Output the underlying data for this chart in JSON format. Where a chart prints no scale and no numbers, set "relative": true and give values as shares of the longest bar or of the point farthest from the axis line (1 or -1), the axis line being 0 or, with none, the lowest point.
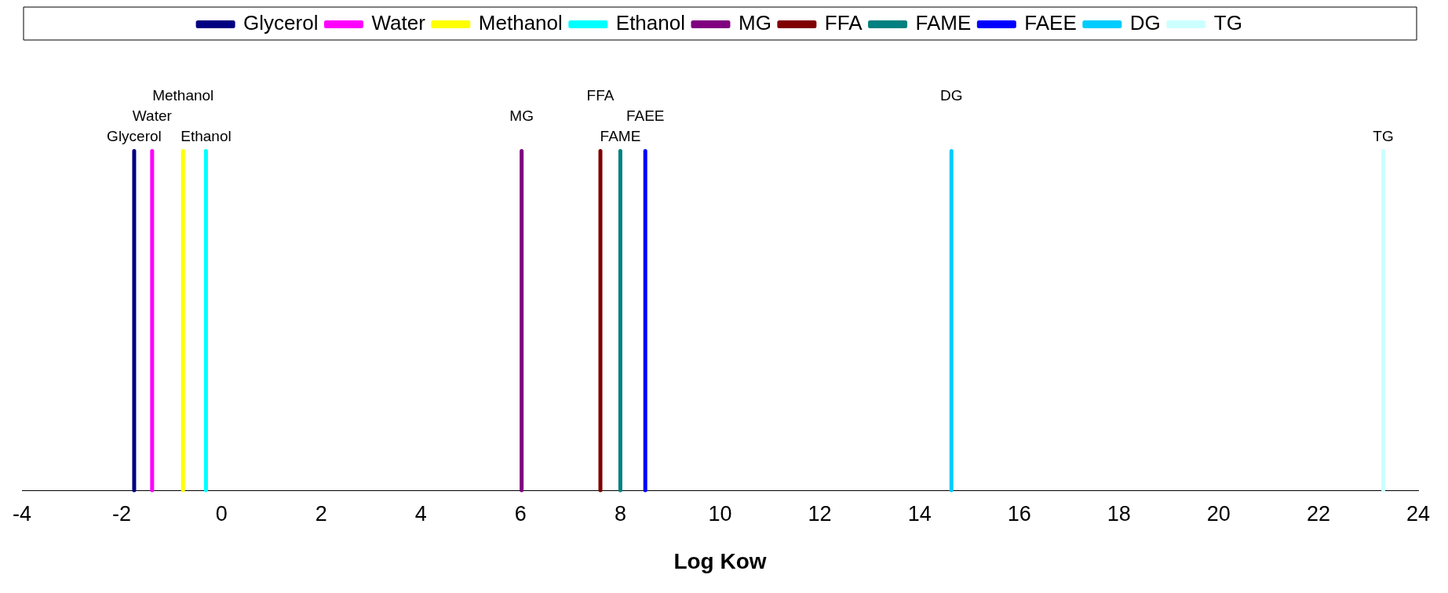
{
  "chart_data": {
    "type": "line",
    "xlabel": "Log Kow",
    "relative": true,
    "legend": "top",
    "grid": false,
    "marker": "none",
    "xlim": [
      -4,
      24
    ],
    "xticks": [
      -4,
      -2,
      0,
      2,
      4,
      6,
      8,
      10,
      12,
      14,
      16,
      18,
      20,
      22,
      24
    ],
    "series": [
      {
        "name": "Glycerol",
        "color": "#000080",
        "x": [
          -1.75,
          -1.75
        ],
        "values": [
          0,
          1
        ]
      },
      {
        "name": "Water",
        "color": "#ff00ff",
        "x": [
          -1.39,
          -1.39
        ],
        "values": [
          0,
          1
        ]
      },
      {
        "name": "Methanol",
        "color": "#ffff00",
        "x": [
          -0.77,
          -0.77
        ],
        "values": [
          0,
          1
        ]
      },
      {
        "name": "Ethanol",
        "color": "#00ffff",
        "x": [
          -0.31,
          -0.31
        ],
        "values": [
          0,
          1
        ]
      },
      {
        "name": "MG",
        "color": "#800080",
        "x": [
          6.02,
          6.02
        ],
        "values": [
          0,
          1
        ]
      },
      {
        "name": "FFA",
        "color": "#800000",
        "x": [
          7.6,
          7.6
        ],
        "values": [
          0,
          1
        ]
      },
      {
        "name": "FAME",
        "color": "#008080",
        "x": [
          8.0,
          8.0
        ],
        "values": [
          0,
          1
        ]
      },
      {
        "name": "FAEE",
        "color": "#0000ff",
        "x": [
          8.5,
          8.5
        ],
        "values": [
          0,
          1
        ]
      },
      {
        "name": "DG",
        "color": "#00ccff",
        "x": [
          14.64,
          14.64
        ],
        "values": [
          0,
          1
        ]
      },
      {
        "name": "TG",
        "color": "#ccffff",
        "x": [
          23.3,
          23.3
        ],
        "values": [
          0,
          1
        ]
      }
    ],
    "annotations": [
      "Glycerol",
      "Water",
      "Methanol",
      "Ethanol",
      "MG",
      "FFA",
      "FAME",
      "FAEE",
      "DG",
      "TG"
    ]
  }
}
